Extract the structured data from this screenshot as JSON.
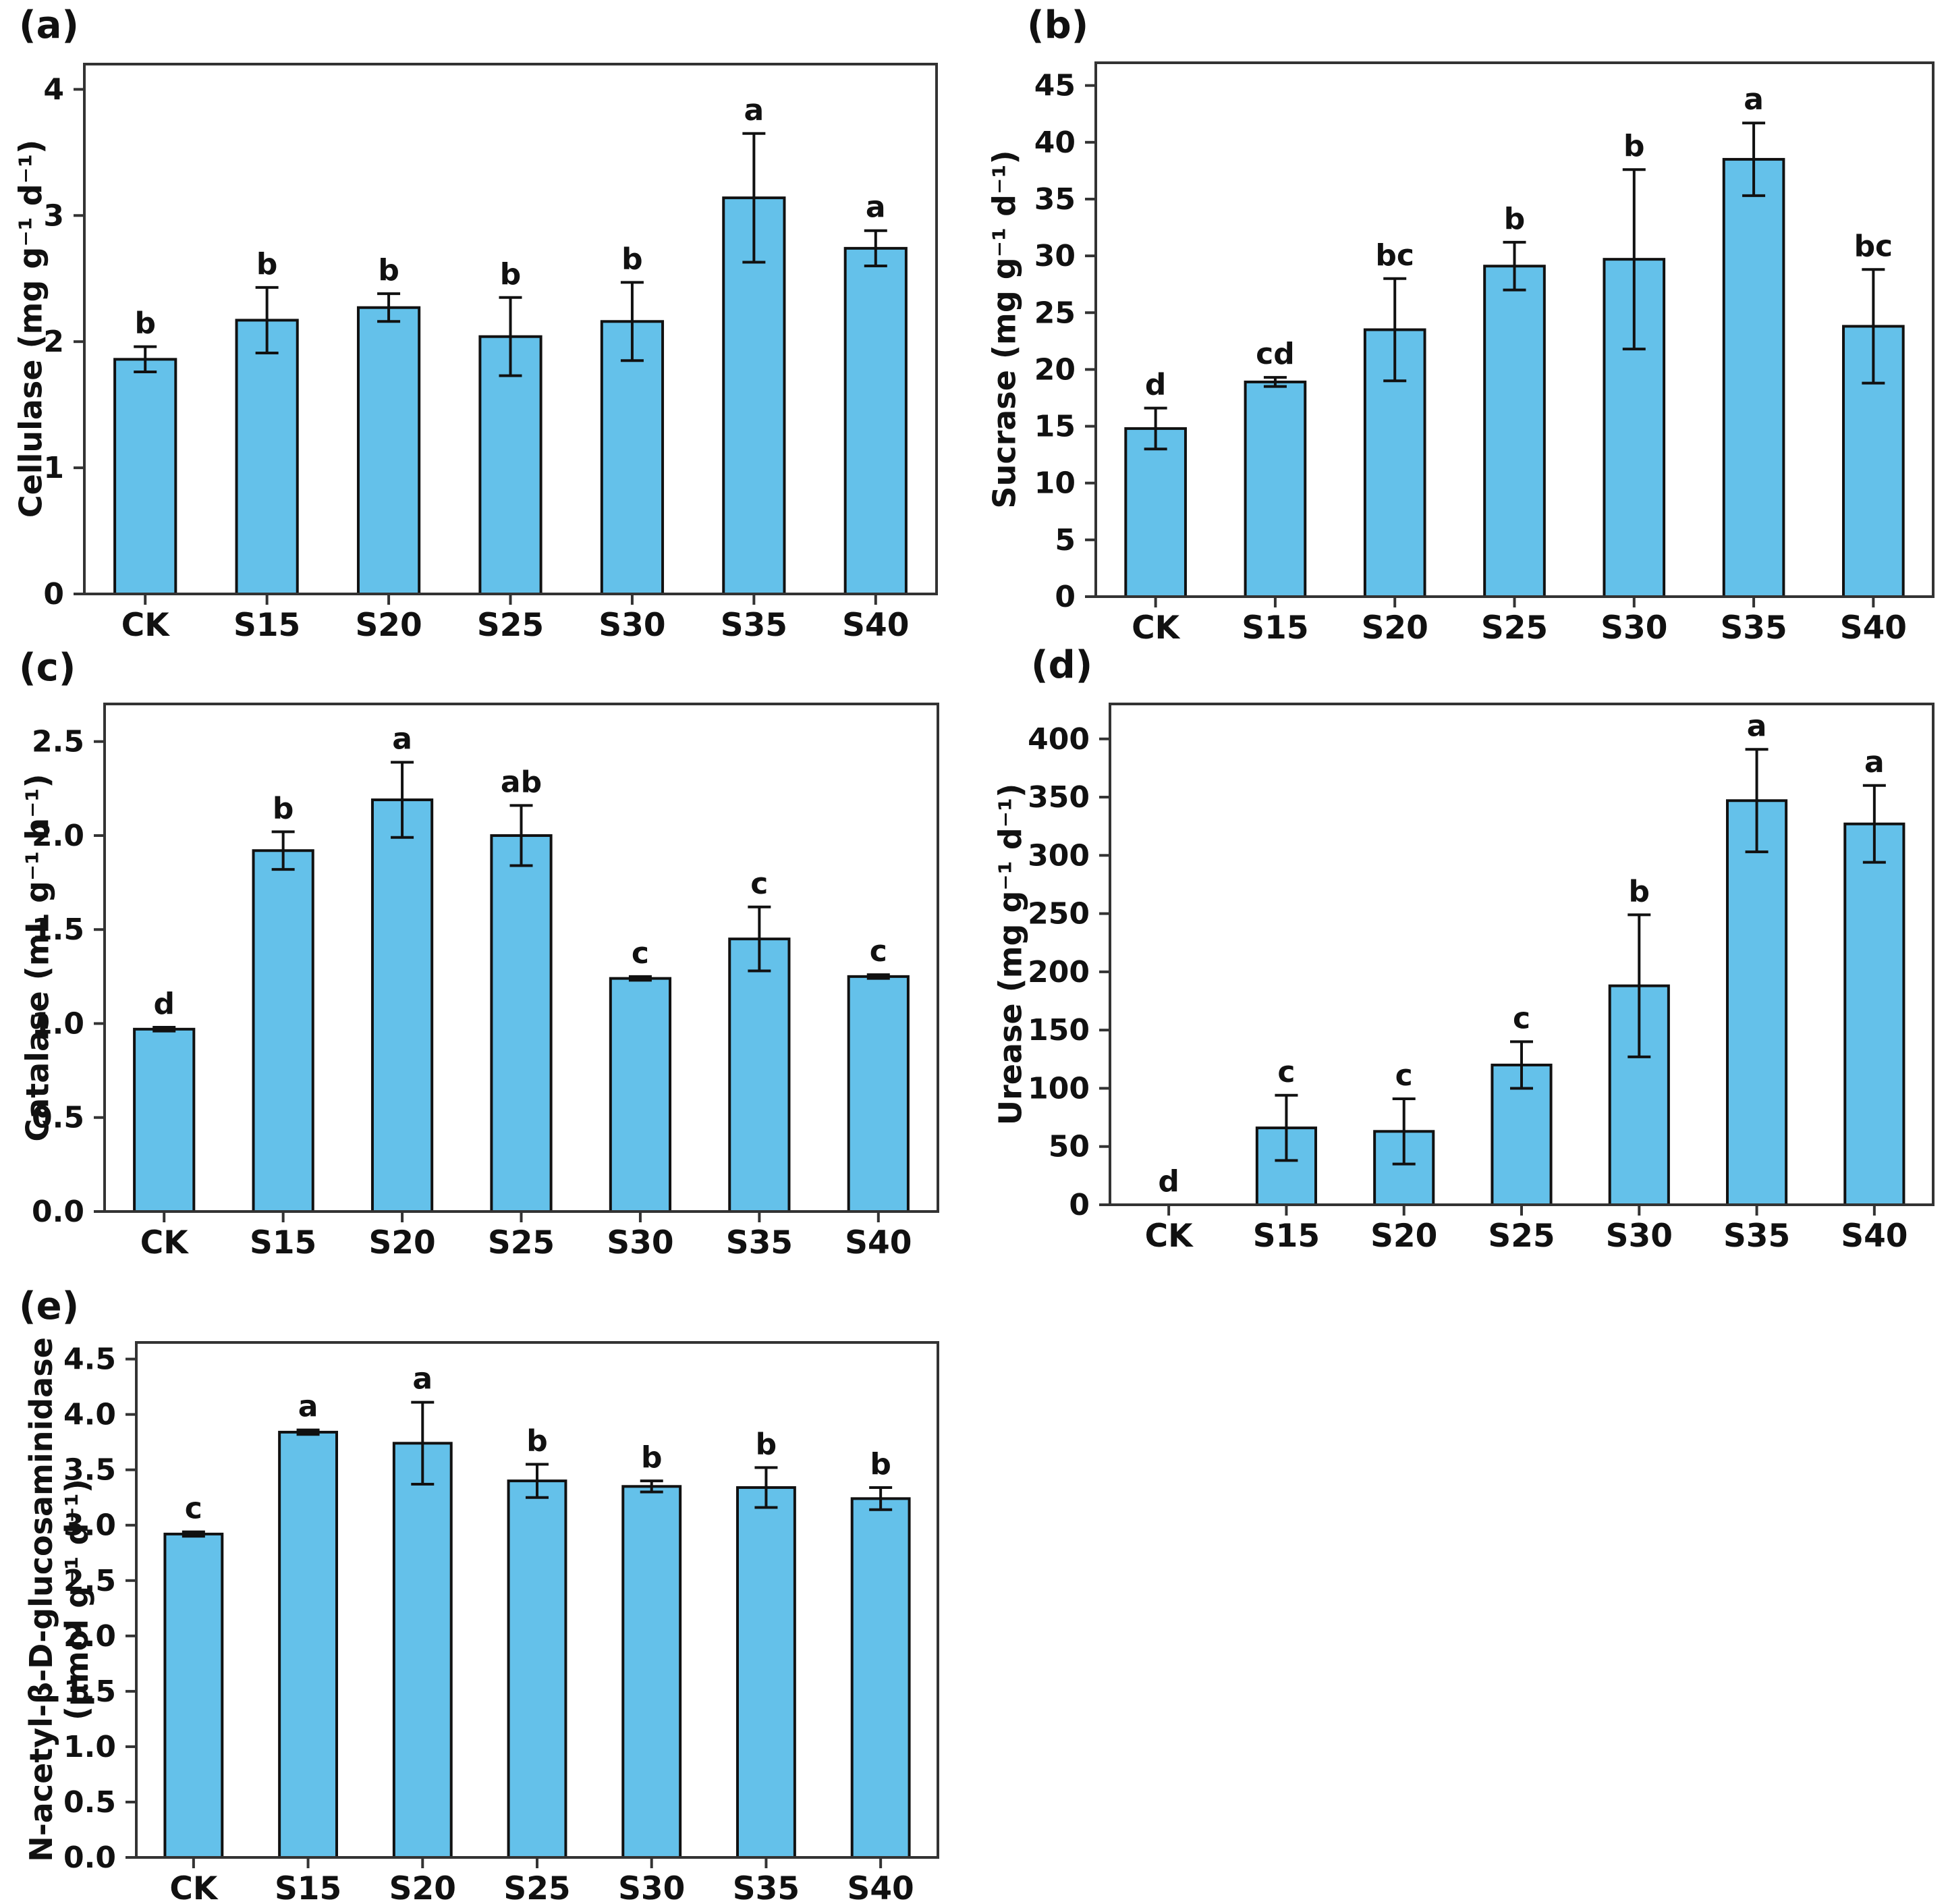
{
  "figure": {
    "background": "#ffffff",
    "bar_fill": "#64c1ea",
    "bar_edge": "#111111",
    "axis_color": "#333333"
  },
  "chart_data": [
    {
      "id": "a",
      "type": "bar",
      "panel_label": "(a)",
      "ylabel": "Cellulase (mg g⁻¹ d⁻¹)",
      "categories": [
        "CK",
        "S15",
        "S20",
        "S25",
        "S30",
        "S35",
        "S40"
      ],
      "values": [
        1.86,
        2.17,
        2.27,
        2.04,
        2.16,
        3.14,
        2.74
      ],
      "errors": [
        0.1,
        0.26,
        0.11,
        0.31,
        0.31,
        0.51,
        0.14
      ],
      "sig_letters": [
        "b",
        "b",
        "b",
        "b",
        "b",
        "a",
        "a"
      ],
      "ylim": [
        0,
        4.2
      ],
      "yticks": [
        0,
        1,
        2,
        3,
        4
      ],
      "ytick_labels": [
        "0",
        "1",
        "2",
        "3",
        "4"
      ],
      "grid": false,
      "legend": "none"
    },
    {
      "id": "b",
      "type": "bar",
      "panel_label": "(b)",
      "ylabel": "Sucrase (mg g⁻¹ d⁻¹)",
      "categories": [
        "CK",
        "S15",
        "S20",
        "S25",
        "S30",
        "S35",
        "S40"
      ],
      "values": [
        14.8,
        18.9,
        23.5,
        29.1,
        29.7,
        38.5,
        23.8
      ],
      "errors": [
        1.8,
        0.4,
        4.5,
        2.1,
        7.9,
        3.2,
        5.0
      ],
      "sig_letters": [
        "d",
        "cd",
        "bc",
        "b",
        "b",
        "a",
        "bc"
      ],
      "ylim": [
        0,
        47
      ],
      "yticks": [
        0,
        5,
        10,
        15,
        20,
        25,
        30,
        35,
        40,
        45
      ],
      "ytick_labels": [
        "0",
        "5",
        "10",
        "15",
        "20",
        "25",
        "30",
        "35",
        "40",
        "45"
      ],
      "grid": false,
      "legend": "none"
    },
    {
      "id": "c",
      "type": "bar",
      "panel_label": "(c)",
      "ylabel": "Catalase (mL g⁻¹ h⁻¹)",
      "categories": [
        "CK",
        "S15",
        "S20",
        "S25",
        "S30",
        "S35",
        "S40"
      ],
      "values": [
        0.97,
        1.92,
        2.19,
        2.0,
        1.24,
        1.45,
        1.25
      ],
      "errors": [
        0.01,
        0.1,
        0.2,
        0.16,
        0.01,
        0.17,
        0.01
      ],
      "sig_letters": [
        "d",
        "b",
        "a",
        "ab",
        "c",
        "c",
        "c"
      ],
      "ylim": [
        0,
        2.7
      ],
      "yticks": [
        0.0,
        0.5,
        1.0,
        1.5,
        2.0,
        2.5
      ],
      "ytick_labels": [
        "0.0",
        "0.5",
        "1.0",
        "1.5",
        "2.0",
        "2.5"
      ],
      "grid": false,
      "legend": "none"
    },
    {
      "id": "d",
      "type": "bar",
      "panel_label": "(d)",
      "ylabel": "Urease (mg g⁻¹ d⁻¹)",
      "categories": [
        "CK",
        "S15",
        "S20",
        "S25",
        "S30",
        "S35",
        "S40"
      ],
      "values": [
        0,
        66,
        63,
        120,
        188,
        347,
        327
      ],
      "errors": [
        0,
        28,
        28,
        20,
        61,
        44,
        33
      ],
      "sig_letters": [
        "d",
        "c",
        "c",
        "c",
        "b",
        "a",
        "a"
      ],
      "ylim": [
        0,
        430
      ],
      "yticks": [
        0,
        50,
        100,
        150,
        200,
        250,
        300,
        350,
        400
      ],
      "ytick_labels": [
        "0",
        "50",
        "100",
        "150",
        "200",
        "250",
        "300",
        "350",
        "400"
      ],
      "grid": false,
      "legend": "none"
    },
    {
      "id": "e",
      "type": "bar",
      "panel_label": "(e)",
      "ylabel": "N-acetyl-β-D-glucosaminidase",
      "ylabel2": "(μmol g⁻¹ d⁻¹)",
      "categories": [
        "CK",
        "S15",
        "S20",
        "S25",
        "S30",
        "S35",
        "S40"
      ],
      "values": [
        2.92,
        3.84,
        3.74,
        3.4,
        3.35,
        3.34,
        3.24
      ],
      "errors": [
        0.02,
        0.02,
        0.37,
        0.15,
        0.05,
        0.18,
        0.1
      ],
      "sig_letters": [
        "c",
        "a",
        "a",
        "b",
        "b",
        "b",
        "b"
      ],
      "ylim": [
        0,
        4.65
      ],
      "yticks": [
        0.0,
        0.5,
        1.0,
        1.5,
        2.0,
        2.5,
        3.0,
        3.5,
        4.0,
        4.5
      ],
      "ytick_labels": [
        "0.0",
        "0.5",
        "1.0",
        "1.5",
        "2.0",
        "2.5",
        "3.0",
        "3.5",
        "4.0",
        "4.5"
      ],
      "grid": false,
      "legend": "none"
    }
  ]
}
